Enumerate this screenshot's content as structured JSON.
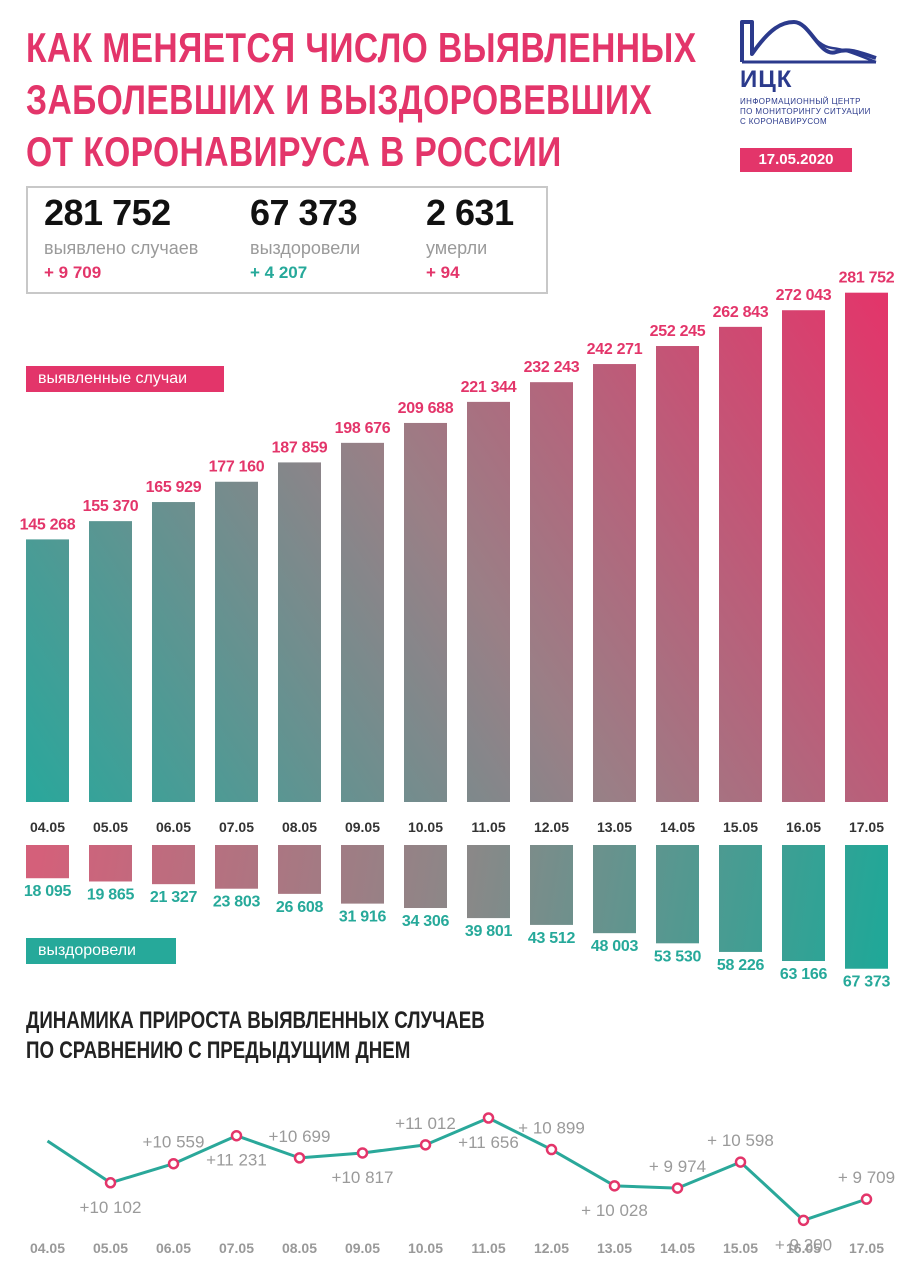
{
  "header": {
    "title_lines": [
      "Как меняется число выявленных",
      "заболевших и выздоровевших",
      "от коронавируса в России"
    ],
    "logo_name": "ИЦК",
    "logo_sub_lines": [
      "Информационный центр",
      "по мониторингу ситуации",
      "с коронавирусом"
    ],
    "date": "17.05.2020"
  },
  "stats": [
    {
      "value": "281 752",
      "label": "выявлено случаев",
      "delta": "+ 9 709"
    },
    {
      "value": "67 373",
      "label": "выздоровели",
      "delta": "+ 4 207"
    },
    {
      "value": "2 631",
      "label": "умерли",
      "delta": "+ 94"
    }
  ],
  "labels": {
    "cases": "выявленные случаи",
    "recovered": "выздоровели"
  },
  "line_title_lines": [
    "Динамика прироста выявленных случаев",
    "по сравнению с предыдущим днем"
  ],
  "colors": {
    "pink": "#e3356a",
    "teal": "#26a99a",
    "grey": "#9a9a9a",
    "line": "#2aa89a"
  },
  "chart_data": [
    {
      "type": "bar",
      "categories": [
        "04.05",
        "05.05",
        "06.05",
        "07.05",
        "08.05",
        "09.05",
        "10.05",
        "11.05",
        "12.05",
        "13.05",
        "14.05",
        "15.05",
        "16.05",
        "17.05"
      ],
      "series": [
        {
          "name": "выявленные случаи",
          "values": [
            145268,
            155370,
            165929,
            177160,
            187859,
            198676,
            209688,
            221344,
            232243,
            242271,
            252245,
            262843,
            272043,
            281752
          ]
        }
      ],
      "labels": [
        "145 268",
        "155 370",
        "165 929",
        "177 160",
        "187 859",
        "198 676",
        "209 688",
        "221 344",
        "232 243",
        "242 271",
        "252 245",
        "262 843",
        "272 043",
        "281 752"
      ]
    },
    {
      "type": "bar",
      "categories": [
        "04.05",
        "05.05",
        "06.05",
        "07.05",
        "08.05",
        "09.05",
        "10.05",
        "11.05",
        "12.05",
        "13.05",
        "14.05",
        "15.05",
        "16.05",
        "17.05"
      ],
      "series": [
        {
          "name": "выздоровели",
          "values": [
            18095,
            19865,
            21327,
            23803,
            26608,
            31916,
            34306,
            39801,
            43512,
            48003,
            53530,
            58226,
            63166,
            67373
          ]
        }
      ],
      "labels": [
        "18 095",
        "19 865",
        "21 327",
        "23 803",
        "26 608",
        "31 916",
        "34 306",
        "39 801",
        "43 512",
        "48 003",
        "53 530",
        "58 226",
        "63 166",
        "67 373"
      ]
    },
    {
      "type": "line",
      "categories": [
        "04.05",
        "05.05",
        "06.05",
        "07.05",
        "08.05",
        "09.05",
        "10.05",
        "11.05",
        "12.05",
        "13.05",
        "14.05",
        "15.05",
        "16.05",
        "17.05"
      ],
      "values": [
        null,
        10102,
        10559,
        11231,
        10699,
        10817,
        11012,
        11656,
        10899,
        10028,
        9974,
        10598,
        9200,
        9709
      ],
      "labels": [
        "",
        "+10 102",
        "+10 559",
        "+11 231",
        "+10 699",
        "+10 817",
        "+11 012",
        "+11 656",
        "+ 10 899",
        "+ 10 028",
        "+ 9 974",
        "+ 10 598",
        "+ 9 200",
        "+ 9 709"
      ],
      "label_positions": [
        "",
        "below",
        "above",
        "below",
        "above",
        "below",
        "above",
        "below",
        "above",
        "below",
        "above",
        "above",
        "below",
        "above"
      ]
    }
  ]
}
